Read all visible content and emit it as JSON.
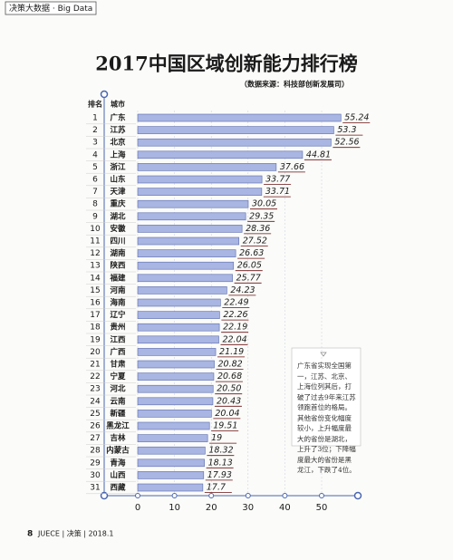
{
  "header": {
    "section": "决策大数据 · Big Data"
  },
  "footer": {
    "page": "8",
    "text": "JUECE | 决策 | 2018.1"
  },
  "chart_data": {
    "type": "bar",
    "orientation": "horizontal",
    "title": "2017中国区域创新能力排行榜",
    "subtitle": "（数据来源：科技部创新发展司）",
    "rank_label": "排名",
    "category_label": "城市",
    "ranks": [
      1,
      2,
      3,
      4,
      5,
      6,
      7,
      8,
      9,
      10,
      11,
      12,
      13,
      14,
      15,
      16,
      17,
      18,
      19,
      20,
      21,
      22,
      23,
      24,
      25,
      26,
      27,
      28,
      29,
      30,
      31
    ],
    "categories": [
      "广东",
      "江苏",
      "北京",
      "上海",
      "浙江",
      "山东",
      "天津",
      "重庆",
      "湖北",
      "安徽",
      "四川",
      "湖南",
      "陕西",
      "福建",
      "河南",
      "海南",
      "辽宁",
      "贵州",
      "江西",
      "广西",
      "甘肃",
      "宁夏",
      "河北",
      "云南",
      "新疆",
      "黑龙江",
      "吉林",
      "内蒙古",
      "青海",
      "山西",
      "西藏"
    ],
    "values": [
      55.24,
      53.3,
      52.56,
      44.81,
      37.66,
      33.77,
      33.71,
      30.05,
      29.35,
      28.36,
      27.52,
      26.63,
      26.05,
      25.77,
      24.23,
      22.49,
      22.26,
      22.19,
      22.04,
      21.19,
      20.82,
      20.68,
      20.5,
      20.43,
      20.04,
      19.51,
      19,
      18.32,
      18.13,
      17.93,
      17.7
    ],
    "value_labels": [
      "55.24",
      "53.3",
      "52.56",
      "44.81",
      "37.66",
      "33.77",
      "33.71",
      "30.05",
      "29.35",
      "28.36",
      "27.52",
      "26.63",
      "26.05",
      "25.77",
      "24.23",
      "22.49",
      "22.26",
      "22.19",
      "22.04",
      "21.19",
      "20.82",
      "20.68",
      "20.50",
      "20.43",
      "20.04",
      "19.51",
      "19",
      "18.32",
      "18.13",
      "17.93",
      "17.7"
    ],
    "color": "#a9b5e2",
    "xlim": [
      0,
      60
    ],
    "xticks": [
      0,
      10,
      20,
      30,
      40,
      50
    ],
    "grid": true,
    "annotation": "广东省实现全国第一，江苏、北京、上海位列其后，打破了过去9年来江苏领跑首位的格局。其他省份变化幅度较小，上升幅度最大的省份是湖北，上升了3位；下降幅度最大的省份是黑龙江，下跌了4位。"
  }
}
